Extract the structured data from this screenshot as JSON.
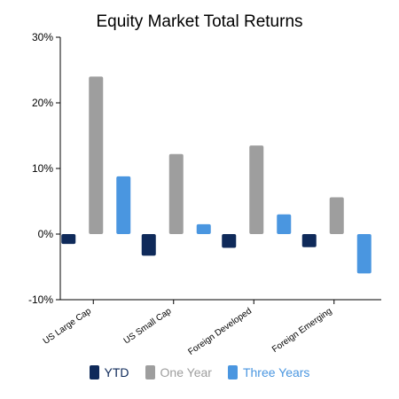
{
  "chart_data": {
    "type": "bar",
    "title": "Equity Market Total Returns",
    "categories": [
      "US Large Cap",
      "US Small Cap",
      "Foreign Developed",
      "Foreign Emerging"
    ],
    "series": [
      {
        "name": "YTD",
        "color": "#0f2a5a",
        "values": [
          -1.5,
          -3.3,
          -2.1,
          -2.0
        ]
      },
      {
        "name": "One Year",
        "color": "#9e9e9e",
        "values": [
          24.0,
          12.2,
          13.5,
          5.6
        ]
      },
      {
        "name": "Three Years",
        "color": "#4a96e0",
        "values": [
          8.8,
          1.5,
          3.0,
          -6.0
        ]
      }
    ],
    "ylim": [
      -10,
      30
    ],
    "yticks": [
      30,
      20,
      10,
      0,
      -10
    ],
    "ytick_labels": [
      "30%",
      "20%",
      "10%",
      "0%",
      "-10%"
    ],
    "legend": "bottom",
    "grid": false
  }
}
